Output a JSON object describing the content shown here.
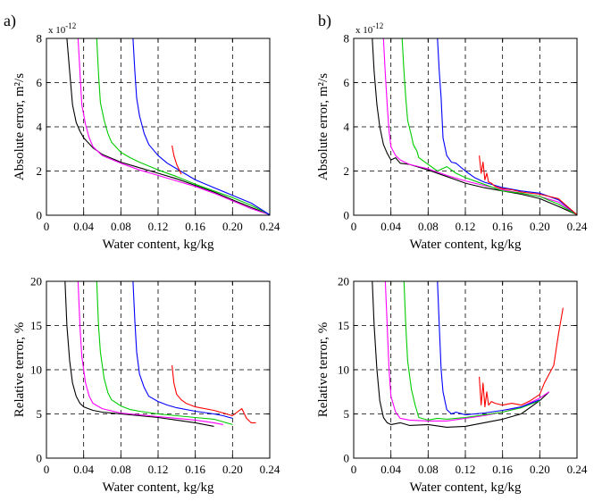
{
  "chart_data": [
    {
      "id": "a_abs",
      "panel_label": "a)",
      "type": "line",
      "ylabel": "Absolute error, m²/s",
      "xlabel": "Water content, kg/kg",
      "y_multiplier": "x 10",
      "y_multiplier_exp": "-12",
      "xlim": [
        0,
        0.24
      ],
      "ylim": [
        0,
        8
      ],
      "xticks": [
        "0",
        "0.04",
        "0.08",
        "0.12",
        "0.16",
        "0.20",
        "0.24"
      ],
      "yticks": [
        "0",
        "2",
        "4",
        "6",
        "8"
      ],
      "grid": true,
      "series": [
        {
          "color": "#000000",
          "x": [
            0.022,
            0.025,
            0.028,
            0.032,
            0.036,
            0.04,
            0.05,
            0.06,
            0.08,
            0.1,
            0.12,
            0.14,
            0.16,
            0.18,
            0.2,
            0.22,
            0.24
          ],
          "y": [
            8,
            6.5,
            5,
            4.2,
            3.8,
            3.5,
            3.05,
            2.75,
            2.4,
            2.15,
            1.9,
            1.65,
            1.35,
            1.05,
            0.7,
            0.35,
            0.02
          ]
        },
        {
          "color": "#ff00ff",
          "x": [
            0.034,
            0.036,
            0.038,
            0.042,
            0.046,
            0.05,
            0.06,
            0.08,
            0.1,
            0.12,
            0.14,
            0.16,
            0.18,
            0.2,
            0.22,
            0.24
          ],
          "y": [
            8,
            6.5,
            5,
            4.1,
            3.5,
            3.1,
            2.7,
            2.35,
            2.05,
            1.8,
            1.55,
            1.3,
            1.0,
            0.65,
            0.3,
            0.02
          ]
        },
        {
          "color": "#00cc00",
          "x": [
            0.054,
            0.056,
            0.058,
            0.062,
            0.066,
            0.07,
            0.08,
            0.09,
            0.1,
            0.12,
            0.14,
            0.16,
            0.18,
            0.2,
            0.22,
            0.24
          ],
          "y": [
            8,
            6.4,
            5.1,
            4.3,
            3.7,
            3.3,
            2.85,
            2.6,
            2.4,
            2.05,
            1.75,
            1.4,
            1.1,
            0.8,
            0.45,
            0.02
          ]
        },
        {
          "color": "#0000ff",
          "x": [
            0.093,
            0.095,
            0.097,
            0.1,
            0.105,
            0.11,
            0.12,
            0.13,
            0.14,
            0.16,
            0.18,
            0.2,
            0.22,
            0.24
          ],
          "y": [
            8,
            6.5,
            5.3,
            4.5,
            3.7,
            3.2,
            2.7,
            2.35,
            2.1,
            1.6,
            1.25,
            0.9,
            0.55,
            0.02
          ]
        },
        {
          "color": "#ff0000",
          "x": [
            0.135,
            0.137,
            0.14,
            0.145
          ],
          "y": [
            3.15,
            2.7,
            2.3,
            1.85
          ]
        }
      ]
    },
    {
      "id": "b_abs",
      "panel_label": "b)",
      "type": "line",
      "ylabel": "Absolute error, m²/s",
      "xlabel": "Water content, kg/kg",
      "y_multiplier": "x 10",
      "y_multiplier_exp": "-12",
      "xlim": [
        0,
        0.24
      ],
      "ylim": [
        0,
        8
      ],
      "xticks": [
        "0",
        "0.04",
        "0.08",
        "0.12",
        "0.16",
        "0.20",
        "0.24"
      ],
      "yticks": [
        "0",
        "2",
        "4",
        "6",
        "8"
      ],
      "grid": true,
      "series": [
        {
          "color": "#000000",
          "x": [
            0.02,
            0.022,
            0.025,
            0.028,
            0.032,
            0.036,
            0.04,
            0.045,
            0.05,
            0.06,
            0.08,
            0.1,
            0.12,
            0.14,
            0.16,
            0.18,
            0.2,
            0.22,
            0.24
          ],
          "y": [
            8,
            6.5,
            5.0,
            4.0,
            3.2,
            2.8,
            2.5,
            2.6,
            2.35,
            2.3,
            2.05,
            1.75,
            1.45,
            1.25,
            1.1,
            0.95,
            0.75,
            0.4,
            0.02
          ]
        },
        {
          "color": "#ff00ff",
          "x": [
            0.032,
            0.034,
            0.036,
            0.038,
            0.04,
            0.045,
            0.05,
            0.06,
            0.08,
            0.1,
            0.12,
            0.14,
            0.16,
            0.18,
            0.2,
            0.22,
            0.24
          ],
          "y": [
            8,
            6.4,
            5.0,
            3.8,
            3.1,
            2.7,
            2.5,
            2.3,
            2.1,
            1.8,
            1.55,
            1.35,
            1.15,
            1.0,
            0.85,
            0.6,
            0.02
          ]
        },
        {
          "color": "#00cc00",
          "x": [
            0.052,
            0.054,
            0.056,
            0.058,
            0.062,
            0.064,
            0.068,
            0.07,
            0.08,
            0.09,
            0.1,
            0.11,
            0.12,
            0.14,
            0.16,
            0.18,
            0.2,
            0.22,
            0.24
          ],
          "y": [
            8,
            6.5,
            5.3,
            4.3,
            3.6,
            3.2,
            2.9,
            2.6,
            2.3,
            2.0,
            2.2,
            1.9,
            1.7,
            1.4,
            1.1,
            1.0,
            0.85,
            0.5,
            0.02
          ]
        },
        {
          "color": "#0000ff",
          "x": [
            0.09,
            0.092,
            0.094,
            0.096,
            0.1,
            0.105,
            0.11,
            0.12,
            0.13,
            0.14,
            0.16,
            0.18,
            0.2,
            0.22,
            0.24
          ],
          "y": [
            8,
            6.5,
            5.3,
            3.5,
            2.7,
            2.4,
            2.35,
            2.0,
            1.7,
            1.5,
            1.25,
            1.1,
            1.0,
            0.7,
            0.02
          ]
        },
        {
          "color": "#ff0000",
          "x": [
            0.135,
            0.137,
            0.139,
            0.141,
            0.143,
            0.145,
            0.148,
            0.152,
            0.16,
            0.17,
            0.18,
            0.2,
            0.22,
            0.24
          ],
          "y": [
            2.7,
            1.9,
            2.4,
            1.6,
            1.9,
            1.5,
            1.45,
            1.3,
            1.2,
            1.15,
            1.05,
            0.95,
            0.75,
            0.02
          ]
        }
      ]
    },
    {
      "id": "a_rel",
      "type": "line",
      "ylabel": "Relative terror, %",
      "xlabel": "Water content, kg/kg",
      "xlim": [
        0,
        0.24
      ],
      "ylim": [
        0,
        20
      ],
      "xticks": [
        "0",
        "0.04",
        "0.08",
        "0.12",
        "0.16",
        "0.20",
        "0.24"
      ],
      "yticks": [
        "0",
        "5",
        "10",
        "15",
        "20"
      ],
      "grid": true,
      "series": [
        {
          "color": "#000000",
          "x": [
            0.02,
            0.022,
            0.025,
            0.028,
            0.032,
            0.036,
            0.04,
            0.05,
            0.06,
            0.08,
            0.1,
            0.12,
            0.14,
            0.16,
            0.18
          ],
          "y": [
            20,
            15,
            11,
            8.5,
            7,
            6.2,
            5.8,
            5.4,
            5.2,
            5.0,
            4.8,
            4.6,
            4.3,
            4.0,
            3.6
          ]
        },
        {
          "color": "#ff00ff",
          "x": [
            0.034,
            0.036,
            0.038,
            0.042,
            0.046,
            0.05,
            0.06,
            0.08,
            0.1,
            0.12,
            0.14,
            0.16,
            0.18,
            0.19
          ],
          "y": [
            20,
            15,
            11.5,
            8.5,
            7,
            6.2,
            5.6,
            5.1,
            4.9,
            4.7,
            4.5,
            4.3,
            4.0,
            3.8
          ]
        },
        {
          "color": "#00cc00",
          "x": [
            0.054,
            0.056,
            0.058,
            0.062,
            0.066,
            0.07,
            0.08,
            0.09,
            0.1,
            0.12,
            0.14,
            0.16,
            0.18,
            0.19,
            0.2
          ],
          "y": [
            20,
            15,
            12,
            9,
            7.4,
            6.6,
            5.9,
            5.5,
            5.3,
            5.0,
            4.8,
            4.6,
            4.4,
            4.1,
            3.8
          ]
        },
        {
          "color": "#0000ff",
          "x": [
            0.093,
            0.095,
            0.097,
            0.1,
            0.105,
            0.11,
            0.12,
            0.13,
            0.14,
            0.16,
            0.18,
            0.19,
            0.2
          ],
          "y": [
            20,
            15.5,
            12,
            9.5,
            8.0,
            7.0,
            6.4,
            6.0,
            5.7,
            5.3,
            5.0,
            4.8,
            4.5
          ]
        },
        {
          "color": "#ff0000",
          "x": [
            0.135,
            0.137,
            0.14,
            0.145,
            0.15,
            0.16,
            0.18,
            0.2,
            0.205,
            0.21,
            0.215,
            0.22,
            0.225
          ],
          "y": [
            10.5,
            8.5,
            7.2,
            6.6,
            6.2,
            5.8,
            5.4,
            4.8,
            5.2,
            5.6,
            4.5,
            4.0,
            4.0
          ]
        }
      ]
    },
    {
      "id": "b_rel",
      "type": "line",
      "ylabel": "Relative terror, %",
      "xlabel": "Water content, kg/kg",
      "xlim": [
        0,
        0.24
      ],
      "ylim": [
        0,
        20
      ],
      "xticks": [
        "0",
        "0.04",
        "0.08",
        "0.12",
        "0.16",
        "0.20",
        "0.24"
      ],
      "yticks": [
        "0",
        "5",
        "10",
        "15",
        "20"
      ],
      "grid": true,
      "series": [
        {
          "color": "#000000",
          "x": [
            0.02,
            0.022,
            0.025,
            0.028,
            0.032,
            0.036,
            0.04,
            0.05,
            0.06,
            0.08,
            0.1,
            0.12,
            0.14,
            0.16,
            0.18,
            0.2,
            0.21
          ],
          "y": [
            20,
            15,
            10,
            6.5,
            4.6,
            4.0,
            3.8,
            4.0,
            3.7,
            3.8,
            3.5,
            3.6,
            4.0,
            4.4,
            5.0,
            6.5,
            7.5
          ]
        },
        {
          "color": "#ff00ff",
          "x": [
            0.034,
            0.036,
            0.038,
            0.04,
            0.045,
            0.05,
            0.06,
            0.08,
            0.1,
            0.12,
            0.14,
            0.16,
            0.18,
            0.2,
            0.21
          ],
          "y": [
            20,
            15,
            10,
            7,
            5.2,
            4.5,
            4.3,
            4.2,
            4.2,
            4.5,
            4.8,
            5.2,
            5.8,
            6.8,
            7.5
          ]
        },
        {
          "color": "#00cc00",
          "x": [
            0.054,
            0.056,
            0.058,
            0.062,
            0.066,
            0.07,
            0.08,
            0.09,
            0.1,
            0.12,
            0.14,
            0.16,
            0.18,
            0.2
          ],
          "y": [
            20,
            15,
            11,
            7.8,
            6.0,
            4.6,
            4.3,
            4.5,
            4.4,
            4.6,
            4.9,
            5.2,
            5.7,
            6.5
          ]
        },
        {
          "color": "#0000ff",
          "x": [
            0.09,
            0.092,
            0.094,
            0.096,
            0.1,
            0.105,
            0.11,
            0.12,
            0.13,
            0.14,
            0.16,
            0.18,
            0.2
          ],
          "y": [
            20,
            15,
            10,
            7.5,
            5.5,
            5.0,
            5.2,
            4.9,
            5.0,
            5.1,
            5.4,
            5.8,
            6.6
          ]
        },
        {
          "color": "#ff0000",
          "x": [
            0.135,
            0.137,
            0.139,
            0.141,
            0.143,
            0.145,
            0.148,
            0.152,
            0.16,
            0.17,
            0.18,
            0.19,
            0.2,
            0.205,
            0.21,
            0.215,
            0.22,
            0.225
          ],
          "y": [
            9.2,
            6.0,
            8.5,
            5.8,
            7.5,
            6.0,
            6.4,
            6.2,
            6.0,
            6.2,
            6.0,
            6.5,
            7.2,
            8.5,
            9.5,
            10.5,
            14,
            17
          ]
        }
      ]
    }
  ]
}
